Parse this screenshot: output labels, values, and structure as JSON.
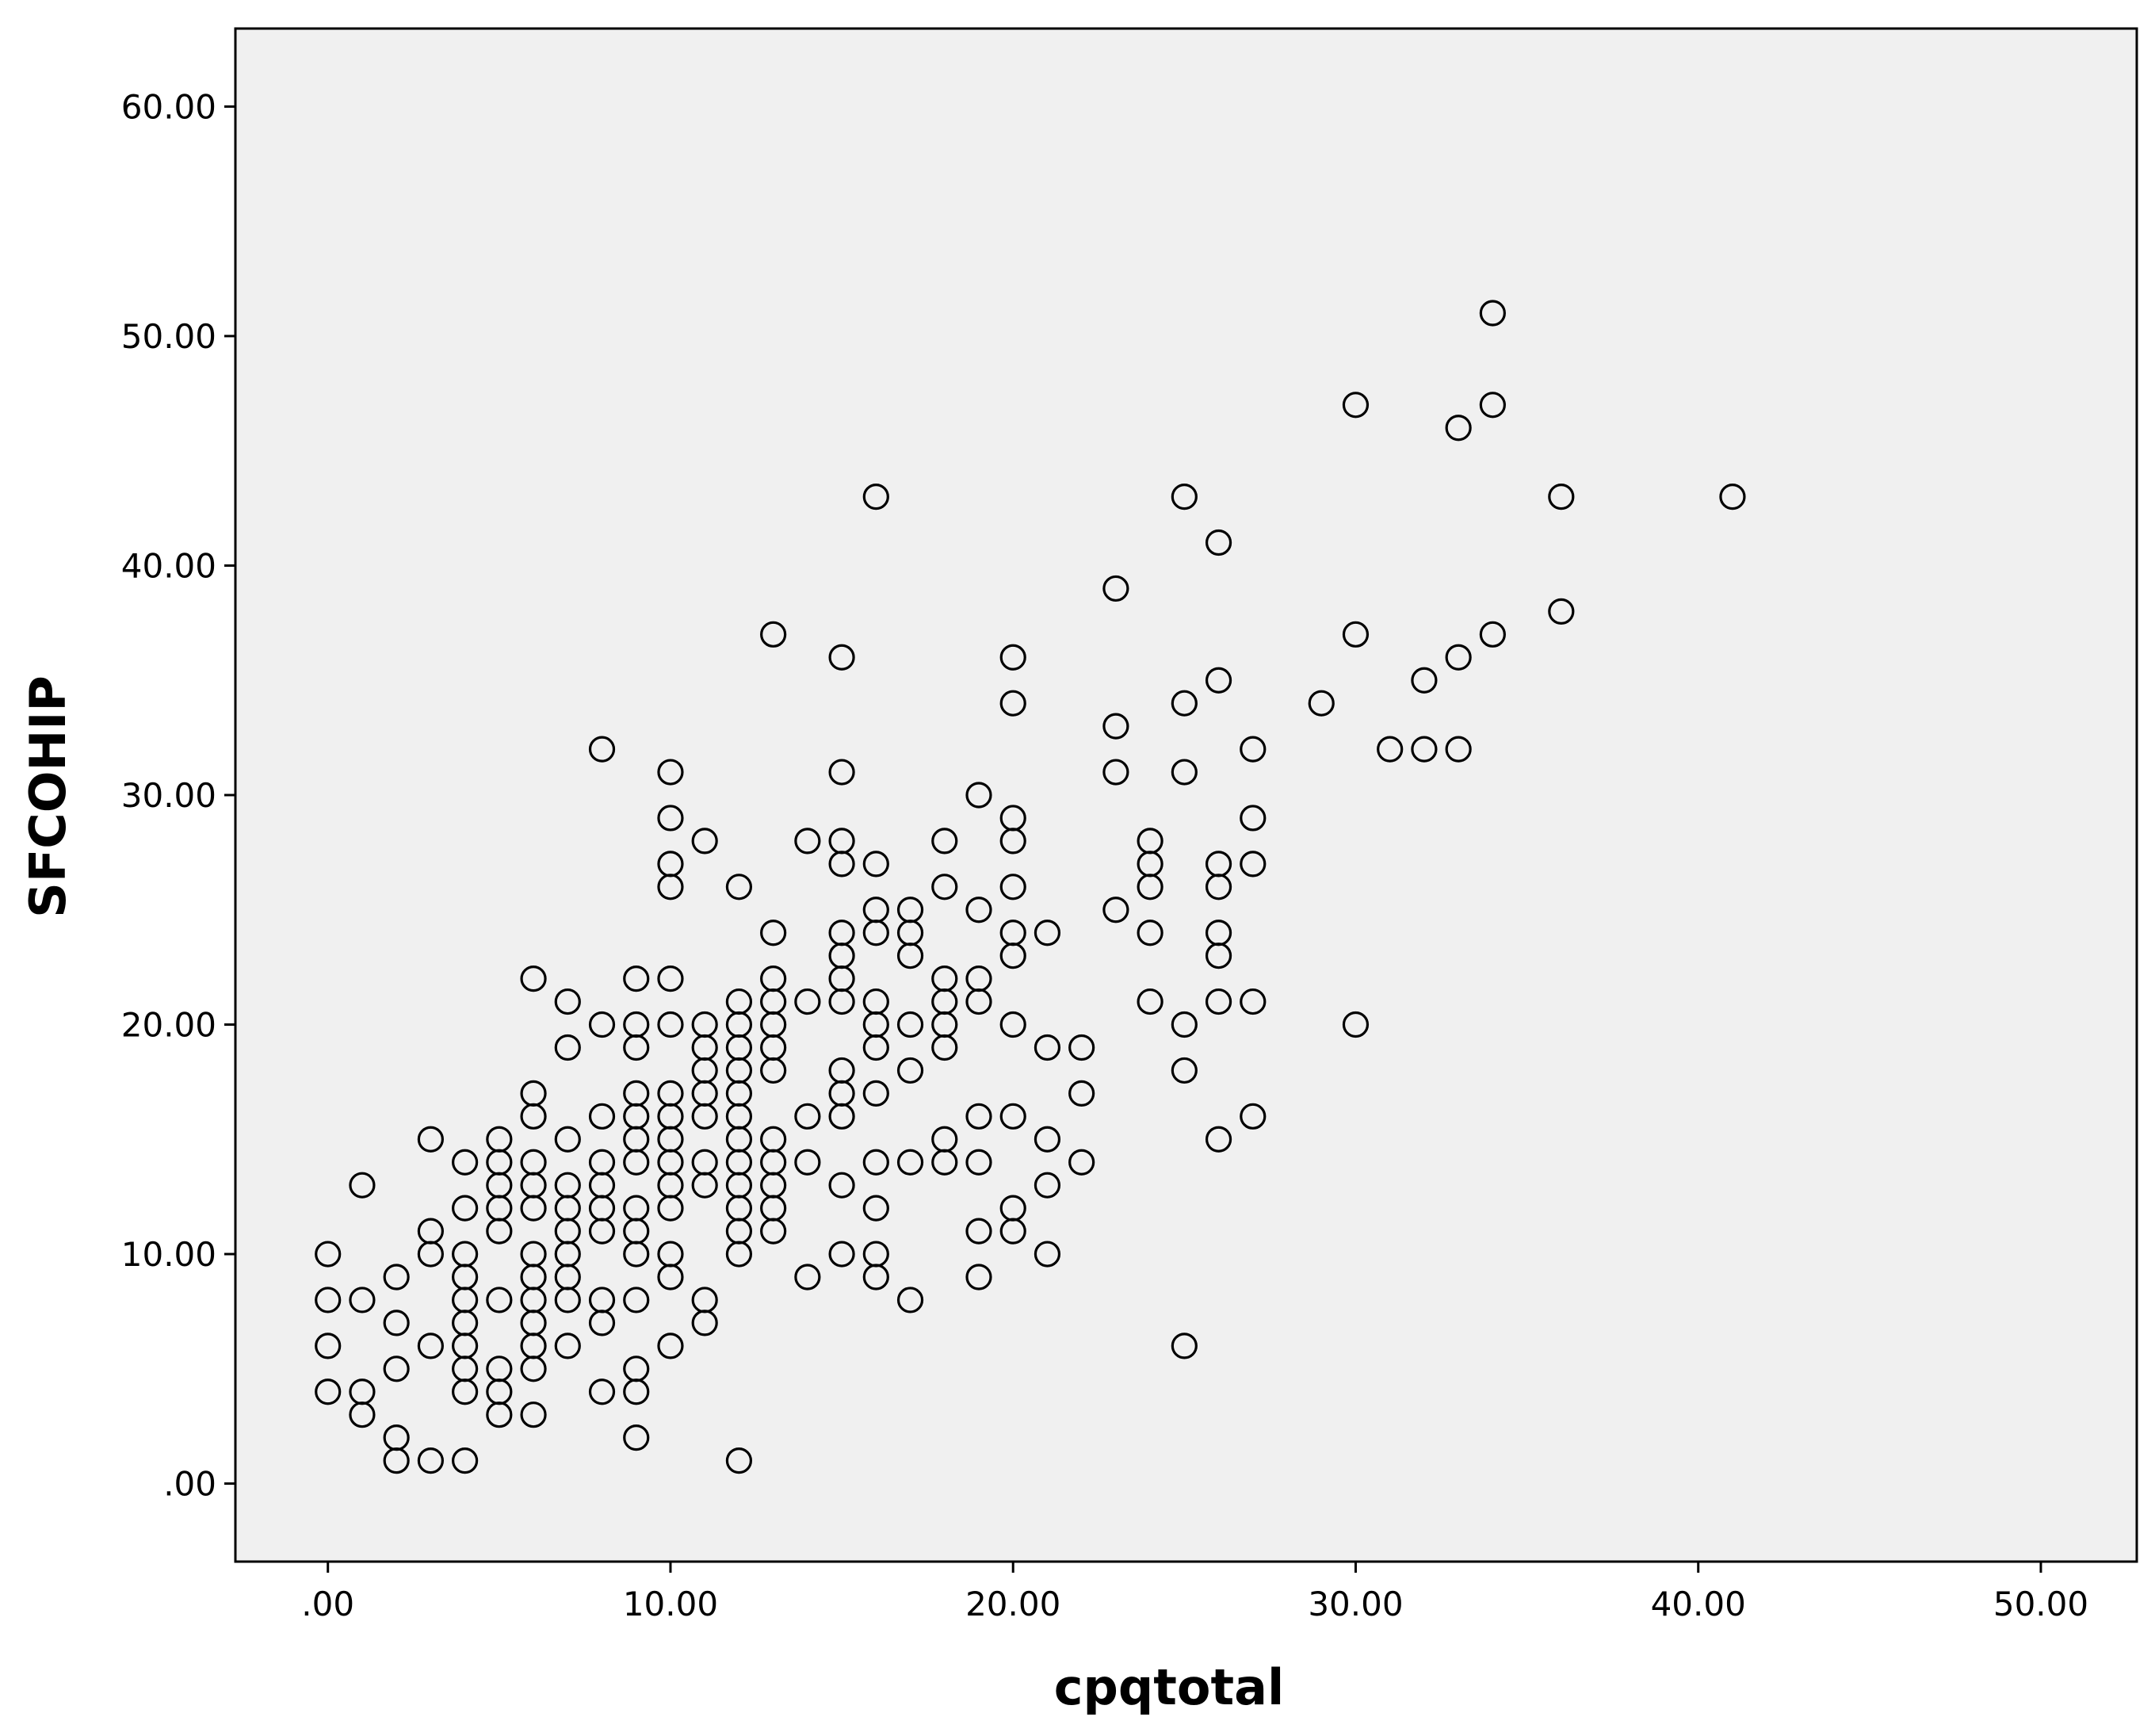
{
  "chart_data": {
    "type": "scatter",
    "xlabel": "cpqtotal",
    "ylabel": "SFCOHIP",
    "xlim": [
      -2.7,
      52.8
    ],
    "ylim": [
      -3.4,
      63.4
    ],
    "grid": false,
    "x_ticks": [
      ".00",
      "10.00",
      "20.00",
      "30.00",
      "40.00",
      "50.00"
    ],
    "y_ticks": [
      ".00",
      "10.00",
      "20.00",
      "30.00",
      "40.00",
      "50.00",
      "60.00"
    ],
    "colors": {
      "plot_background": "#f0f0f0",
      "marker": "#000000"
    },
    "points": [
      [
        0,
        10
      ],
      [
        0,
        8
      ],
      [
        0,
        6
      ],
      [
        0,
        4
      ],
      [
        1,
        13
      ],
      [
        1,
        8
      ],
      [
        1,
        4
      ],
      [
        1,
        3
      ],
      [
        2,
        9
      ],
      [
        2,
        7
      ],
      [
        2,
        5
      ],
      [
        2,
        2
      ],
      [
        2,
        1
      ],
      [
        3,
        15
      ],
      [
        3,
        11
      ],
      [
        3,
        10
      ],
      [
        3,
        6
      ],
      [
        3,
        1
      ],
      [
        4,
        14
      ],
      [
        4,
        12
      ],
      [
        4,
        10
      ],
      [
        4,
        9
      ],
      [
        4,
        8
      ],
      [
        4,
        7
      ],
      [
        4,
        6
      ],
      [
        4,
        5
      ],
      [
        4,
        4
      ],
      [
        4,
        1
      ],
      [
        5,
        15
      ],
      [
        5,
        14
      ],
      [
        5,
        13
      ],
      [
        5,
        12
      ],
      [
        5,
        11
      ],
      [
        5,
        8
      ],
      [
        5,
        5
      ],
      [
        5,
        4
      ],
      [
        5,
        3
      ],
      [
        6,
        22
      ],
      [
        6,
        17
      ],
      [
        6,
        16
      ],
      [
        6,
        14
      ],
      [
        6,
        13
      ],
      [
        6,
        12
      ],
      [
        6,
        10
      ],
      [
        6,
        9
      ],
      [
        6,
        8
      ],
      [
        6,
        7
      ],
      [
        6,
        6
      ],
      [
        6,
        5
      ],
      [
        6,
        3
      ],
      [
        7,
        21
      ],
      [
        7,
        19
      ],
      [
        7,
        15
      ],
      [
        7,
        13
      ],
      [
        7,
        12
      ],
      [
        7,
        11
      ],
      [
        7,
        10
      ],
      [
        7,
        9
      ],
      [
        7,
        8
      ],
      [
        7,
        6
      ],
      [
        8,
        32
      ],
      [
        8,
        20
      ],
      [
        8,
        16
      ],
      [
        8,
        14
      ],
      [
        8,
        13
      ],
      [
        8,
        12
      ],
      [
        8,
        11
      ],
      [
        8,
        8
      ],
      [
        8,
        7
      ],
      [
        8,
        4
      ],
      [
        9,
        22
      ],
      [
        9,
        20
      ],
      [
        9,
        19
      ],
      [
        9,
        17
      ],
      [
        9,
        16
      ],
      [
        9,
        15
      ],
      [
        9,
        14
      ],
      [
        9,
        12
      ],
      [
        9,
        11
      ],
      [
        9,
        10
      ],
      [
        9,
        8
      ],
      [
        9,
        5
      ],
      [
        9,
        4
      ],
      [
        9,
        2
      ],
      [
        10,
        31
      ],
      [
        10,
        29
      ],
      [
        10,
        27
      ],
      [
        10,
        26
      ],
      [
        10,
        22
      ],
      [
        10,
        20
      ],
      [
        10,
        17
      ],
      [
        10,
        16
      ],
      [
        10,
        15
      ],
      [
        10,
        14
      ],
      [
        10,
        13
      ],
      [
        10,
        12
      ],
      [
        10,
        10
      ],
      [
        10,
        9
      ],
      [
        10,
        6
      ],
      [
        11,
        28
      ],
      [
        11,
        20
      ],
      [
        11,
        19
      ],
      [
        11,
        18
      ],
      [
        11,
        17
      ],
      [
        11,
        16
      ],
      [
        11,
        14
      ],
      [
        11,
        13
      ],
      [
        11,
        8
      ],
      [
        11,
        7
      ],
      [
        12,
        26
      ],
      [
        12,
        21
      ],
      [
        12,
        20
      ],
      [
        12,
        19
      ],
      [
        12,
        18
      ],
      [
        12,
        17
      ],
      [
        12,
        16
      ],
      [
        12,
        15
      ],
      [
        12,
        14
      ],
      [
        12,
        13
      ],
      [
        12,
        12
      ],
      [
        12,
        11
      ],
      [
        12,
        10
      ],
      [
        12,
        1
      ],
      [
        13,
        37
      ],
      [
        13,
        24
      ],
      [
        13,
        22
      ],
      [
        13,
        21
      ],
      [
        13,
        20
      ],
      [
        13,
        19
      ],
      [
        13,
        18
      ],
      [
        13,
        15
      ],
      [
        13,
        14
      ],
      [
        13,
        13
      ],
      [
        13,
        12
      ],
      [
        13,
        11
      ],
      [
        14,
        28
      ],
      [
        14,
        21
      ],
      [
        14,
        16
      ],
      [
        14,
        14
      ],
      [
        14,
        9
      ],
      [
        15,
        36
      ],
      [
        15,
        31
      ],
      [
        15,
        28
      ],
      [
        15,
        27
      ],
      [
        15,
        24
      ],
      [
        15,
        23
      ],
      [
        15,
        22
      ],
      [
        15,
        21
      ],
      [
        15,
        18
      ],
      [
        15,
        17
      ],
      [
        15,
        16
      ],
      [
        15,
        13
      ],
      [
        15,
        10
      ],
      [
        16,
        43
      ],
      [
        16,
        27
      ],
      [
        16,
        25
      ],
      [
        16,
        24
      ],
      [
        16,
        21
      ],
      [
        16,
        20
      ],
      [
        16,
        19
      ],
      [
        16,
        17
      ],
      [
        16,
        14
      ],
      [
        16,
        12
      ],
      [
        16,
        10
      ],
      [
        16,
        9
      ],
      [
        17,
        25
      ],
      [
        17,
        24
      ],
      [
        17,
        23
      ],
      [
        17,
        20
      ],
      [
        17,
        18
      ],
      [
        17,
        14
      ],
      [
        17,
        8
      ],
      [
        18,
        28
      ],
      [
        18,
        26
      ],
      [
        18,
        22
      ],
      [
        18,
        21
      ],
      [
        18,
        20
      ],
      [
        18,
        19
      ],
      [
        18,
        15
      ],
      [
        18,
        14
      ],
      [
        19,
        30
      ],
      [
        19,
        25
      ],
      [
        19,
        22
      ],
      [
        19,
        21
      ],
      [
        19,
        16
      ],
      [
        19,
        14
      ],
      [
        19,
        11
      ],
      [
        19,
        9
      ],
      [
        20,
        36
      ],
      [
        20,
        34
      ],
      [
        20,
        29
      ],
      [
        20,
        28
      ],
      [
        20,
        26
      ],
      [
        20,
        24
      ],
      [
        20,
        23
      ],
      [
        20,
        20
      ],
      [
        20,
        16
      ],
      [
        20,
        12
      ],
      [
        20,
        11
      ],
      [
        21,
        24
      ],
      [
        21,
        19
      ],
      [
        21,
        15
      ],
      [
        21,
        13
      ],
      [
        21,
        10
      ],
      [
        22,
        19
      ],
      [
        22,
        17
      ],
      [
        22,
        14
      ],
      [
        23,
        39
      ],
      [
        23,
        33
      ],
      [
        23,
        31
      ],
      [
        23,
        25
      ],
      [
        24,
        28
      ],
      [
        24,
        27
      ],
      [
        24,
        26
      ],
      [
        24,
        24
      ],
      [
        24,
        21
      ],
      [
        25,
        43
      ],
      [
        25,
        34
      ],
      [
        25,
        31
      ],
      [
        25,
        20
      ],
      [
        25,
        18
      ],
      [
        25,
        6
      ],
      [
        26,
        41
      ],
      [
        26,
        35
      ],
      [
        26,
        27
      ],
      [
        26,
        26
      ],
      [
        26,
        24
      ],
      [
        26,
        23
      ],
      [
        26,
        21
      ],
      [
        26,
        15
      ],
      [
        27,
        32
      ],
      [
        27,
        29
      ],
      [
        27,
        27
      ],
      [
        27,
        21
      ],
      [
        27,
        16
      ],
      [
        29,
        34
      ],
      [
        30,
        47
      ],
      [
        30,
        37
      ],
      [
        30,
        20
      ],
      [
        31,
        32
      ],
      [
        32,
        35
      ],
      [
        32,
        32
      ],
      [
        33,
        46
      ],
      [
        33,
        36
      ],
      [
        33,
        32
      ],
      [
        34,
        51
      ],
      [
        34,
        47
      ],
      [
        34,
        37
      ],
      [
        36,
        43
      ],
      [
        36,
        38
      ],
      [
        41,
        43
      ]
    ]
  }
}
